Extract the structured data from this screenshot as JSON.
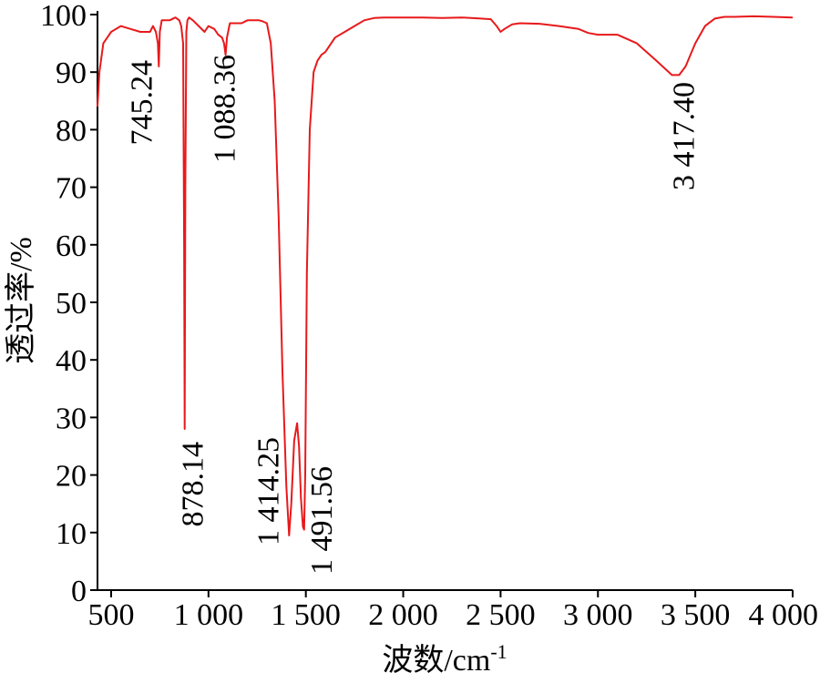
{
  "chart_data": {
    "type": "line",
    "xlabel": "波数/cm",
    "xlabel_superscript": "-1",
    "ylabel": "透过率/%",
    "xlim": [
      430,
      4000
    ],
    "ylim": [
      0,
      100
    ],
    "x_ticks": [
      500,
      1000,
      1500,
      2000,
      2500,
      3000,
      3500,
      4000
    ],
    "x_tick_labels": [
      "500",
      "1 000",
      "1 500",
      "2 000",
      "2 500",
      "3 000",
      "3 500",
      "4 000"
    ],
    "y_ticks": [
      0,
      10,
      20,
      30,
      40,
      50,
      60,
      70,
      80,
      90,
      100
    ],
    "y_tick_labels": [
      "0",
      "10",
      "20",
      "30",
      "40",
      "50",
      "60",
      "70",
      "80",
      "90",
      "100"
    ],
    "grid": false,
    "line_color": "#e8191b",
    "series": [
      {
        "x": [
          430,
          440,
          460,
          480,
          500,
          550,
          600,
          650,
          700,
          715,
          730,
          740,
          745,
          750,
          760,
          780,
          800,
          830,
          850,
          860,
          870,
          875,
          878,
          881,
          886,
          892,
          900,
          920,
          950,
          980,
          1000,
          1030,
          1050,
          1070,
          1080,
          1088,
          1095,
          1110,
          1140,
          1170,
          1200,
          1230,
          1260,
          1280,
          1300,
          1320,
          1340,
          1360,
          1380,
          1400,
          1414,
          1425,
          1440,
          1455,
          1465,
          1475,
          1485,
          1491,
          1497,
          1505,
          1520,
          1540,
          1560,
          1580,
          1600,
          1650,
          1700,
          1750,
          1800,
          1850,
          1900,
          2000,
          2100,
          2200,
          2300,
          2400,
          2450,
          2480,
          2500,
          2520,
          2560,
          2600,
          2700,
          2800,
          2900,
          2950,
          3000,
          3100,
          3200,
          3300,
          3380,
          3417,
          3450,
          3500,
          3550,
          3600,
          3650,
          3700,
          3800,
          3900,
          4000
        ],
        "y": [
          84,
          90,
          95,
          96,
          97,
          98,
          97.5,
          97,
          97,
          98,
          97,
          95,
          91,
          97,
          99,
          99,
          99,
          99.5,
          99,
          98,
          95,
          60,
          28,
          70,
          97,
          99,
          99.5,
          99,
          98,
          97,
          98,
          97.5,
          96.5,
          96,
          95,
          93,
          96,
          98.5,
          98.5,
          98.5,
          99,
          99,
          99,
          98.8,
          98.5,
          95,
          85,
          65,
          38,
          18,
          9.5,
          15,
          26,
          29,
          25,
          16,
          11,
          10.5,
          20,
          55,
          80,
          90,
          92,
          93,
          93.5,
          96,
          97,
          98,
          99,
          99.4,
          99.5,
          99.5,
          99.5,
          99.4,
          99.5,
          99.3,
          99.2,
          98,
          97,
          97.5,
          98.3,
          98.5,
          98.4,
          98,
          97.5,
          96.8,
          96.5,
          96.5,
          95,
          92,
          89.5,
          89.5,
          91,
          95,
          98,
          99.3,
          99.6,
          99.6,
          99.7,
          99.6,
          99.5
        ]
      }
    ],
    "annotations": [
      {
        "text": "745.24",
        "x": 745
      },
      {
        "text": "878.14",
        "x": 878
      },
      {
        "text": "1 088.36",
        "x": 1088
      },
      {
        "text": "1 414.25",
        "x": 1414
      },
      {
        "text": "1 491.56",
        "x": 1491
      },
      {
        "text": "3 417.40",
        "x": 3417
      }
    ]
  }
}
